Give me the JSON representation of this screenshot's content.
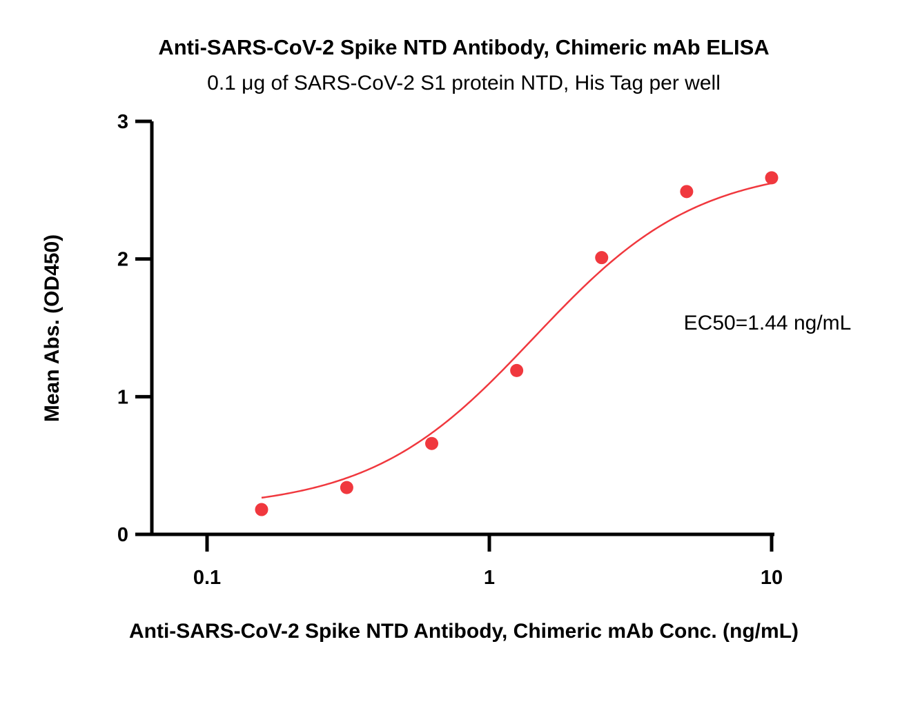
{
  "chart_data": {
    "type": "scatter",
    "title": "Anti-SARS-CoV-2 Spike NTD Antibody, Chimeric mAb ELISA",
    "subtitle": "0.1 μg of SARS-CoV-2 S1 protein NTD, His Tag per well",
    "xlabel": "Anti-SARS-CoV-2 Spike NTD Antibody, Chimeric mAb Conc. (ng/mL)",
    "ylabel": "Mean Abs. (OD450)",
    "x_scale": "log10",
    "xlim": [
      0.063,
      10
    ],
    "ylim": [
      0,
      3
    ],
    "x_ticks": [
      0.1,
      1,
      10
    ],
    "x_tick_labels": [
      "0.1",
      "1",
      "10"
    ],
    "y_ticks": [
      0,
      1,
      2,
      3
    ],
    "y_tick_labels": [
      "0",
      "1",
      "2",
      "3"
    ],
    "grid": false,
    "legend": "none",
    "annotation": "EC50=1.44 ng/mL",
    "ec50": 1.44,
    "color": "#f0383e",
    "series": [
      {
        "x": [
          0.156,
          0.3125,
          0.625,
          1.25,
          2.5,
          5,
          10
        ],
        "y": [
          0.18,
          0.34,
          0.66,
          1.19,
          2.01,
          2.49,
          2.59
        ]
      }
    ],
    "fit": {
      "model": "4PL",
      "bottom": 0.18,
      "top": 2.68,
      "ec50": 1.44,
      "hill": 1.5
    }
  }
}
